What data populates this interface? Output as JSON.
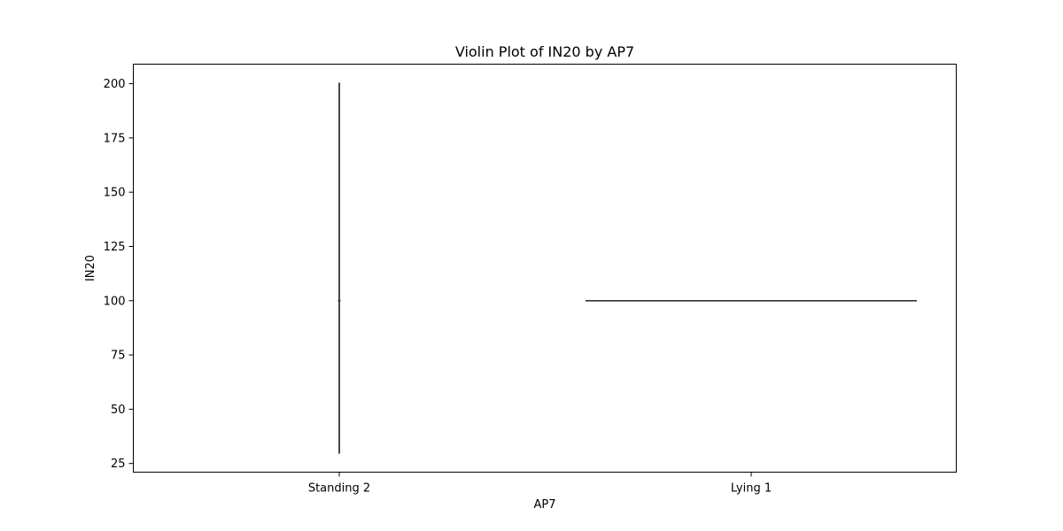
{
  "chart_data": {
    "type": "violin",
    "title": "Violin Plot of IN20 by AP7",
    "xlabel": "AP7",
    "ylabel": "IN20",
    "categories": [
      "Standing 2",
      "Lying 1"
    ],
    "ylim": [
      21,
      209
    ],
    "yticks": [
      25,
      50,
      75,
      100,
      125,
      150,
      175,
      200
    ],
    "violins": [
      {
        "category": "Standing 2",
        "min": 29.5,
        "max": 200.5,
        "median": 100,
        "shape": "vertical line"
      },
      {
        "category": "Lying 1",
        "min": 100,
        "max": 100,
        "median": 100,
        "shape": "flat horizontal line"
      }
    ],
    "grid": false,
    "colors": {
      "mark": "#333333",
      "axis": "#000000",
      "background": "#ffffff"
    }
  }
}
